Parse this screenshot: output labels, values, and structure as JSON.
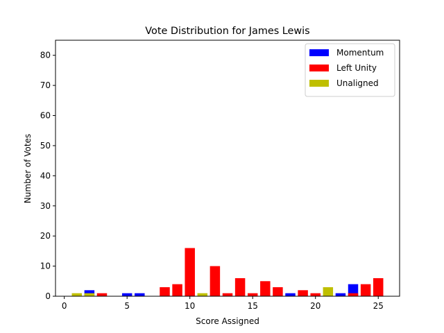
{
  "chart_data": {
    "type": "bar",
    "title": "Vote Distribution for James Lewis",
    "xlabel": "Score Assigned",
    "ylabel": "Number of Votes",
    "xlim": [
      -0.7,
      26.7
    ],
    "ylim": [
      0,
      85
    ],
    "xticks": [
      0,
      5,
      10,
      15,
      20,
      25
    ],
    "yticks": [
      0,
      10,
      20,
      30,
      40,
      50,
      60,
      70,
      80
    ],
    "grid": false,
    "legend_position": "top-right",
    "series": [
      {
        "name": "Momentum",
        "color": "#0000ff",
        "points": [
          [
            2,
            2
          ],
          [
            5,
            1
          ],
          [
            6,
            1
          ],
          [
            18,
            1
          ],
          [
            22,
            1
          ],
          [
            23,
            4
          ]
        ]
      },
      {
        "name": "Left Unity",
        "color": "#ff0000",
        "points": [
          [
            3,
            1
          ],
          [
            8,
            3
          ],
          [
            9,
            4
          ],
          [
            10,
            16
          ],
          [
            12,
            10
          ],
          [
            13,
            1
          ],
          [
            14,
            6
          ],
          [
            15,
            1
          ],
          [
            16,
            5
          ],
          [
            17,
            3
          ],
          [
            19,
            2
          ],
          [
            20,
            1
          ],
          [
            23,
            1
          ],
          [
            24,
            4
          ],
          [
            25,
            6
          ]
        ]
      },
      {
        "name": "Unaligned",
        "color": "#bfbf00",
        "points": [
          [
            1,
            1
          ],
          [
            2,
            1
          ],
          [
            11,
            1
          ],
          [
            21,
            3
          ]
        ]
      }
    ]
  }
}
